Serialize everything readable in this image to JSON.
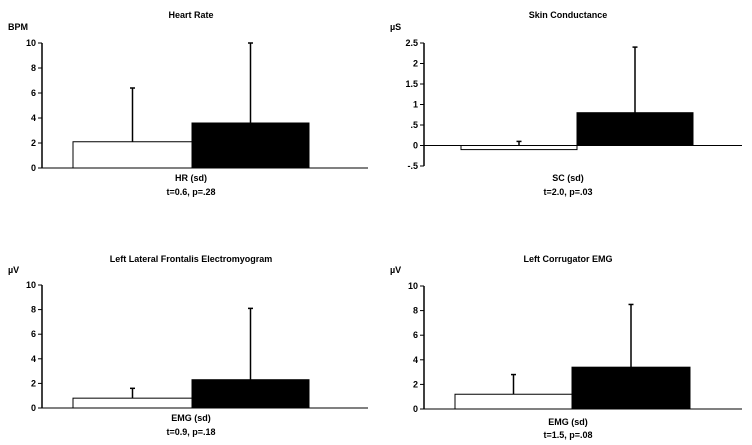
{
  "chart_data": [
    {
      "type": "bar",
      "title": "Heart Rate",
      "ylabel": "BPM",
      "xlabel": "HR (sd)",
      "stat": "t=0.6, p=.28",
      "ylim": [
        0,
        10
      ],
      "yticks": [
        "0",
        "2",
        "4",
        "6",
        "8",
        "10"
      ],
      "series": [
        {
          "name": "",
          "fill": "#ffffff",
          "value": 2.1,
          "sd_top": 6.4
        },
        {
          "name": "",
          "fill": "#000000",
          "value": 3.6,
          "sd_top": 10.0
        }
      ]
    },
    {
      "type": "bar",
      "title": "Skin Conductance",
      "ylabel": "µS",
      "xlabel": "SC (sd)",
      "stat": "t=2.0, p=.03",
      "ylim": [
        -0.5,
        2.5
      ],
      "yticks": [
        "-.5",
        "0",
        ".5",
        "1",
        "1.5",
        "2",
        "2.5"
      ],
      "series": [
        {
          "name": "",
          "fill": "#ffffff",
          "value": -0.1,
          "sd_top": 0.1
        },
        {
          "name": "",
          "fill": "#000000",
          "value": 0.8,
          "sd_top": 2.4
        }
      ]
    },
    {
      "type": "bar",
      "title": "Left Lateral Frontalis Electromyogram",
      "ylabel": "µV",
      "xlabel": "EMG (sd)",
      "stat": "t=0.9, p=.18",
      "ylim": [
        0,
        10
      ],
      "yticks": [
        "0",
        "2",
        "4",
        "6",
        "8",
        "10"
      ],
      "series": [
        {
          "name": "",
          "fill": "#ffffff",
          "value": 0.8,
          "sd_top": 1.6
        },
        {
          "name": "",
          "fill": "#000000",
          "value": 2.3,
          "sd_top": 8.1
        }
      ]
    },
    {
      "type": "bar",
      "title": "Left Corrugator EMG",
      "ylabel": "µV",
      "xlabel": "EMG (sd)",
      "stat": "t=1.5, p=.08",
      "ylim": [
        0,
        10
      ],
      "yticks": [
        "0",
        "2",
        "4",
        "6",
        "8",
        "10"
      ],
      "series": [
        {
          "name": "",
          "fill": "#ffffff",
          "value": 1.2,
          "sd_top": 2.8
        },
        {
          "name": "",
          "fill": "#000000",
          "value": 3.4,
          "sd_top": 8.5
        }
      ]
    }
  ]
}
